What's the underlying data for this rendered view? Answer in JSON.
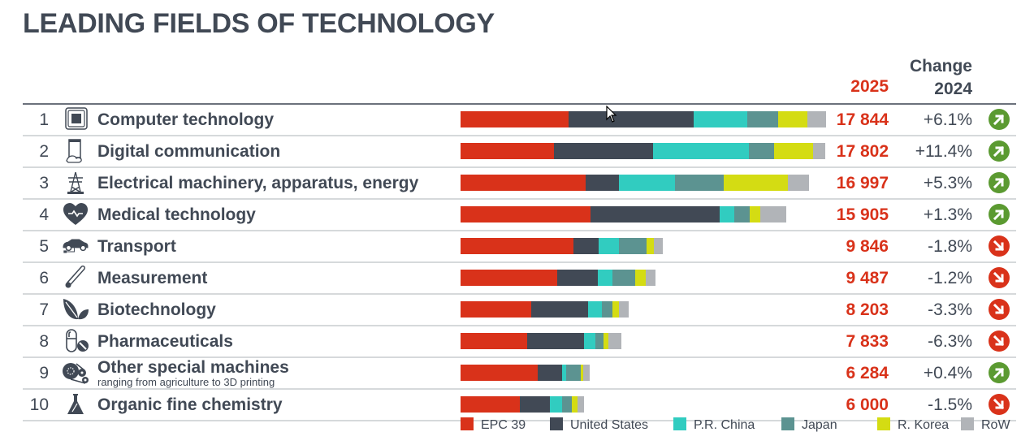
{
  "title": "LEADING FIELDS OF TECHNOLOGY",
  "header": {
    "col_2025": "2025",
    "col_change_line1": "Change",
    "col_change_line2": "2024"
  },
  "colors": {
    "EPC 39": "#d9321a",
    "United States": "#414955",
    "P.R. China": "#31ccc0",
    "Japan": "#5c9391",
    "R. Korea": "#d4dc13",
    "RoW": "#b1b4b8",
    "up": "#5b9a31",
    "down": "#d9321a"
  },
  "rows": [
    {
      "rank": "1",
      "label": "Computer technology",
      "sublabel": "",
      "icon": "chip-icon",
      "total": "17 844",
      "change": "+6.1%",
      "trend": "up"
    },
    {
      "rank": "2",
      "label": "Digital communication",
      "sublabel": "",
      "icon": "touch-device-icon",
      "total": "17 802",
      "change": "+11.4%",
      "trend": "up"
    },
    {
      "rank": "3",
      "label": "Electrical machinery, apparatus, energy",
      "sublabel": "",
      "icon": "power-pylon-icon",
      "total": "16 997",
      "change": "+5.3%",
      "trend": "up"
    },
    {
      "rank": "4",
      "label": "Medical technology",
      "sublabel": "",
      "icon": "heart-pulse-icon",
      "total": "15 905",
      "change": "+1.3%",
      "trend": "up"
    },
    {
      "rank": "5",
      "label": "Transport",
      "sublabel": "",
      "icon": "electric-car-icon",
      "total": "9 846",
      "change": "-1.8%",
      "trend": "down"
    },
    {
      "rank": "6",
      "label": "Measurement",
      "sublabel": "",
      "icon": "thermometer-icon",
      "total": "9 487",
      "change": "-1.2%",
      "trend": "down"
    },
    {
      "rank": "7",
      "label": "Biotechnology",
      "sublabel": "",
      "icon": "leaves-icon",
      "total": "8 203",
      "change": "-3.3%",
      "trend": "down"
    },
    {
      "rank": "8",
      "label": "Pharmaceuticals",
      "sublabel": "",
      "icon": "pills-icon",
      "total": "7 833",
      "change": "-6.3%",
      "trend": "down"
    },
    {
      "rank": "9",
      "label": "Other special machines",
      "sublabel": "ranging from agriculture to 3D printing",
      "icon": "gears-belt-icon",
      "total": "6 284",
      "change": "+0.4%",
      "trend": "up"
    },
    {
      "rank": "10",
      "label": "Organic fine chemistry",
      "sublabel": "",
      "icon": "flask-icon",
      "total": "6 000",
      "change": "-1.5%",
      "trend": "down"
    }
  ],
  "legend": [
    "EPC 39",
    "United States",
    "P.R. China",
    "Japan",
    "R. Korea",
    "RoW"
  ],
  "chart_data": {
    "type": "bar",
    "orientation": "horizontal",
    "stacked": true,
    "title": "LEADING FIELDS OF TECHNOLOGY",
    "categories": [
      "Computer technology",
      "Digital communication",
      "Electrical machinery, apparatus, energy",
      "Medical technology",
      "Transport",
      "Measurement",
      "Biotechnology",
      "Pharmaceuticals",
      "Other special machines",
      "Organic fine chemistry"
    ],
    "totals": [
      17844,
      17802,
      16997,
      15905,
      9846,
      9487,
      8203,
      7833,
      6284,
      6000
    ],
    "change_vs_2024_pct": [
      6.1,
      11.4,
      5.3,
      1.3,
      -1.8,
      -1.2,
      -3.3,
      -6.3,
      0.4,
      -1.5
    ],
    "series": [
      {
        "name": "EPC 39",
        "values": [
          5273,
          4560,
          6106,
          6344,
          5511,
          4718,
          3450,
          3251,
          3767,
          2894
        ]
      },
      {
        "name": "United States",
        "values": [
          6106,
          4837,
          1626,
          6304,
          1229,
          1983,
          2776,
          2776,
          1190,
          1467
        ]
      },
      {
        "name": "P.R. China",
        "values": [
          2617,
          4679,
          2736,
          714,
          991,
          714,
          674,
          555,
          198,
          595
        ]
      },
      {
        "name": "Japan",
        "values": [
          1507,
          1229,
          2379,
          753,
          1348,
          1110,
          515,
          397,
          714,
          476
        ]
      },
      {
        "name": "R. Korea",
        "values": [
          1427,
          1903,
          3132,
          515,
          357,
          515,
          317,
          238,
          119,
          278
        ]
      },
      {
        "name": "RoW",
        "values": [
          912,
          595,
          1031,
          1269,
          436,
          476,
          476,
          634,
          317,
          317
        ]
      }
    ],
    "xlabel": "",
    "ylabel": "",
    "xlim": [
      0,
      17844
    ],
    "grid": false,
    "legend_position": "bottom-right"
  }
}
